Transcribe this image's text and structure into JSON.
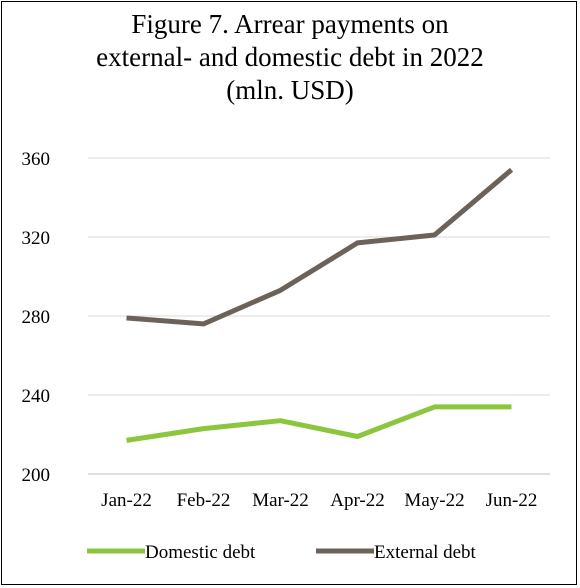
{
  "chart_data": {
    "type": "line",
    "title_lines": [
      "Figure 7. Arrear payments on",
      "external- and domestic debt in 2022",
      "(mln. USD)"
    ],
    "categories": [
      "Jan-22",
      "Feb-22",
      "Mar-22",
      "Apr-22",
      "May-22",
      "Jun-22"
    ],
    "series": [
      {
        "name": "Domestic debt",
        "color": "#8cc63f",
        "values": [
          217,
          223,
          227,
          219,
          234,
          234
        ]
      },
      {
        "name": "External debt",
        "color": "#6b6259",
        "values": [
          279,
          276,
          293,
          317,
          321,
          354
        ]
      }
    ],
    "yticks": [
      200,
      240,
      280,
      320,
      360
    ],
    "ylim": [
      200,
      360
    ],
    "grid": true,
    "legend_position": "bottom"
  }
}
